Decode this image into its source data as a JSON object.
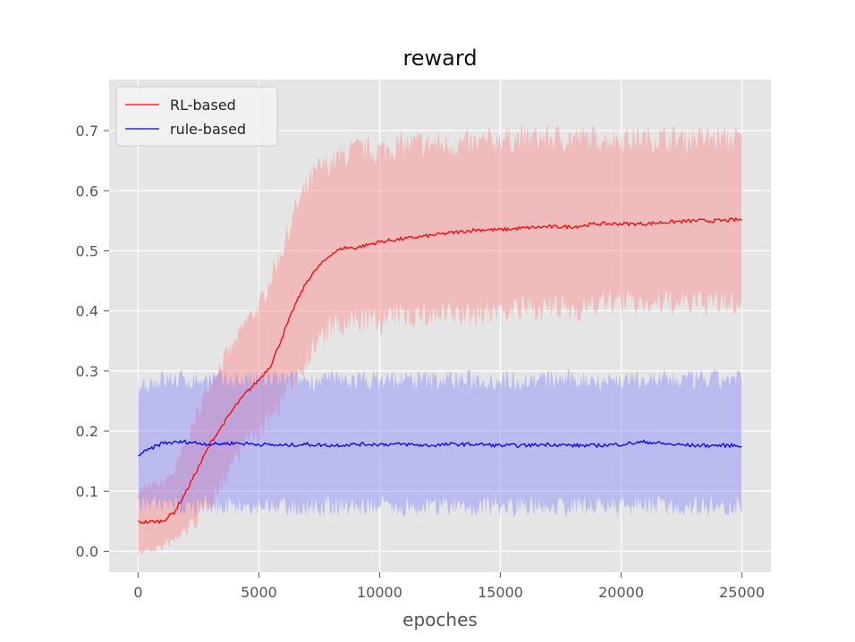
{
  "chart_data": {
    "type": "line",
    "title": "reward",
    "xlabel": "epoches",
    "ylabel": "",
    "xlim": [
      -1200,
      26200
    ],
    "ylim": [
      -0.035,
      0.785
    ],
    "xticks": [
      0,
      5000,
      10000,
      15000,
      20000,
      25000
    ],
    "xtick_labels": [
      "0",
      "5000",
      "10000",
      "15000",
      "20000",
      "25000"
    ],
    "yticks": [
      0.0,
      0.1,
      0.2,
      0.3,
      0.4,
      0.5,
      0.6,
      0.7
    ],
    "ytick_labels": [
      "0.0",
      "0.1",
      "0.2",
      "0.3",
      "0.4",
      "0.5",
      "0.6",
      "0.7"
    ],
    "grid": true,
    "legend_position": "top-left",
    "background_color": "#e5e5e5",
    "series": [
      {
        "name": "RL-based",
        "color": "#ff0000",
        "band_color": "#ff8080",
        "x": [
          0,
          1000,
          1500,
          2000,
          2500,
          3000,
          3500,
          4000,
          4500,
          5000,
          5500,
          6000,
          6500,
          7000,
          7500,
          8000,
          8500,
          9000,
          10000,
          11000,
          12000,
          13000,
          14000,
          15000,
          16000,
          17000,
          18000,
          19000,
          20000,
          21000,
          22000,
          23000,
          24000,
          25000
        ],
        "mean": [
          0.048,
          0.05,
          0.065,
          0.1,
          0.14,
          0.18,
          0.21,
          0.24,
          0.265,
          0.285,
          0.31,
          0.36,
          0.41,
          0.45,
          0.475,
          0.495,
          0.505,
          0.505,
          0.515,
          0.52,
          0.525,
          0.53,
          0.535,
          0.535,
          0.538,
          0.54,
          0.54,
          0.545,
          0.545,
          0.545,
          0.548,
          0.55,
          0.55,
          0.552
        ],
        "lower": [
          0.0,
          0.01,
          0.02,
          0.04,
          0.06,
          0.09,
          0.12,
          0.16,
          0.19,
          0.2,
          0.23,
          0.26,
          0.3,
          0.33,
          0.36,
          0.38,
          0.38,
          0.39,
          0.39,
          0.4,
          0.4,
          0.4,
          0.4,
          0.41,
          0.41,
          0.41,
          0.41,
          0.42,
          0.42,
          0.42,
          0.42,
          0.42,
          0.42,
          0.42
        ],
        "upper": [
          0.1,
          0.11,
          0.13,
          0.18,
          0.23,
          0.28,
          0.31,
          0.34,
          0.38,
          0.4,
          0.45,
          0.5,
          0.56,
          0.6,
          0.63,
          0.64,
          0.65,
          0.66,
          0.66,
          0.67,
          0.67,
          0.67,
          0.67,
          0.68,
          0.68,
          0.68,
          0.68,
          0.68,
          0.68,
          0.68,
          0.68,
          0.68,
          0.68,
          0.68
        ]
      },
      {
        "name": "rule-based",
        "color": "#0000ff",
        "band_color": "#8080ff",
        "x": [
          0,
          1000,
          2000,
          3000,
          4000,
          5000,
          6000,
          7000,
          8000,
          9000,
          10000,
          11000,
          12000,
          13000,
          14000,
          15000,
          16000,
          17000,
          18000,
          19000,
          20000,
          21000,
          22000,
          23000,
          24000,
          25000
        ],
        "mean": [
          0.16,
          0.18,
          0.182,
          0.178,
          0.18,
          0.178,
          0.176,
          0.178,
          0.176,
          0.178,
          0.178,
          0.178,
          0.176,
          0.178,
          0.178,
          0.176,
          0.176,
          0.178,
          0.176,
          0.176,
          0.178,
          0.182,
          0.178,
          0.176,
          0.176,
          0.176
        ],
        "lower": [
          0.08,
          0.08,
          0.08,
          0.08,
          0.08,
          0.08,
          0.08,
          0.08,
          0.08,
          0.08,
          0.08,
          0.08,
          0.08,
          0.08,
          0.08,
          0.08,
          0.08,
          0.08,
          0.08,
          0.08,
          0.08,
          0.08,
          0.08,
          0.08,
          0.08,
          0.08
        ],
        "upper": [
          0.27,
          0.28,
          0.28,
          0.28,
          0.28,
          0.28,
          0.28,
          0.28,
          0.28,
          0.28,
          0.28,
          0.28,
          0.28,
          0.28,
          0.28,
          0.28,
          0.28,
          0.28,
          0.28,
          0.28,
          0.28,
          0.28,
          0.28,
          0.28,
          0.28,
          0.28
        ]
      }
    ]
  }
}
